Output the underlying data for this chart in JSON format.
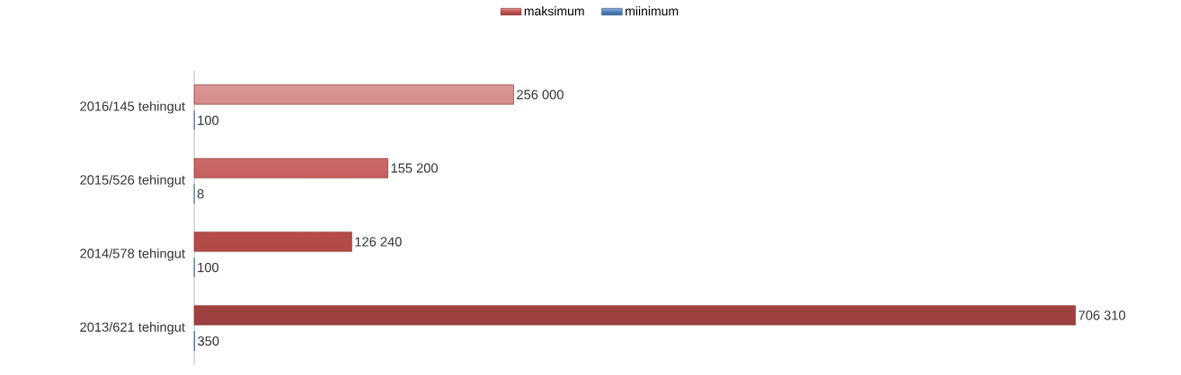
{
  "chart_data": {
    "type": "bar",
    "orientation": "horizontal",
    "categories": [
      "2016/145 tehingut",
      "2015/526 tehingut",
      "2014/578 tehingut",
      "2013/621 tehingut"
    ],
    "series": [
      {
        "name": "maksimum",
        "color": "#c0504d",
        "values": [
          256000,
          155200,
          126240,
          706310
        ],
        "value_labels": [
          "256 000",
          "155 200",
          "126 240",
          "706 310"
        ]
      },
      {
        "name": "miinimum",
        "color": "#4f81bd",
        "values": [
          100,
          8,
          100,
          350
        ],
        "value_labels": [
          "100",
          "8",
          "100",
          "350"
        ]
      }
    ],
    "legend": "top"
  }
}
